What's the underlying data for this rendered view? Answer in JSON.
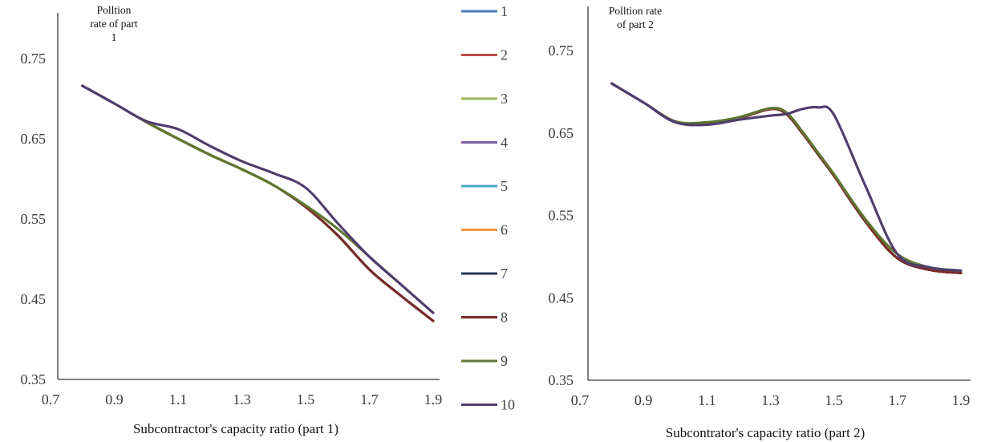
{
  "chart_data": [
    {
      "type": "line",
      "xlabel": "Subcontractor's capacity ratio (part 1)",
      "annotation": [
        "Polltion",
        "rate of part",
        "1"
      ],
      "xlim": [
        0.7,
        1.9
      ],
      "ylim": [
        0.35,
        0.75
      ],
      "xticks": [
        "0.7",
        "0.9",
        "1.1",
        "1.3",
        "1.5",
        "1.7",
        "1.9"
      ],
      "yticks": [
        "0.35",
        "0.45",
        "0.55",
        "0.65",
        "0.75"
      ],
      "x": [
        0.8,
        0.9,
        1.0,
        1.1,
        1.2,
        1.3,
        1.4,
        1.5,
        1.6,
        1.7,
        1.8,
        1.9
      ],
      "series": [
        {
          "name": "1",
          "color": "#4A7EBB",
          "values": [
            0.716,
            0.694,
            0.671,
            0.65,
            0.63,
            0.612,
            0.592,
            0.565,
            0.53,
            0.487,
            0.454,
            0.423
          ]
        },
        {
          "name": "2",
          "color": "#BE4B48",
          "values": [
            0.716,
            0.694,
            0.671,
            0.65,
            0.63,
            0.612,
            0.592,
            0.565,
            0.53,
            0.487,
            0.454,
            0.423
          ]
        },
        {
          "name": "3",
          "color": "#98B954",
          "values": [
            0.716,
            0.694,
            0.671,
            0.65,
            0.63,
            0.612,
            0.592,
            0.567,
            0.538,
            0.503,
            0.468,
            0.433
          ]
        },
        {
          "name": "4",
          "color": "#7D60A0",
          "values": [
            0.716,
            0.694,
            0.672,
            0.662,
            0.641,
            0.622,
            0.607,
            0.589,
            0.545,
            0.503,
            0.468,
            0.433
          ]
        },
        {
          "name": "5",
          "color": "#46AAC5",
          "values": [
            0.716,
            0.694,
            0.671,
            0.65,
            0.63,
            0.612,
            0.592,
            0.565,
            0.53,
            0.487,
            0.454,
            0.423
          ]
        },
        {
          "name": "6",
          "color": "#F69647",
          "values": [
            0.716,
            0.694,
            0.671,
            0.65,
            0.63,
            0.612,
            0.592,
            0.565,
            0.53,
            0.487,
            0.454,
            0.423
          ]
        },
        {
          "name": "7",
          "color": "#23385B",
          "values": [
            0.716,
            0.694,
            0.671,
            0.65,
            0.63,
            0.612,
            0.592,
            0.565,
            0.53,
            0.487,
            0.454,
            0.423
          ]
        },
        {
          "name": "8",
          "color": "#772C2A",
          "values": [
            0.716,
            0.694,
            0.671,
            0.65,
            0.63,
            0.612,
            0.592,
            0.565,
            0.53,
            0.487,
            0.454,
            0.423
          ]
        },
        {
          "name": "9",
          "color": "#5F7530",
          "values": [
            0.716,
            0.694,
            0.671,
            0.65,
            0.63,
            0.612,
            0.592,
            0.567,
            0.538,
            0.503,
            0.468,
            0.433
          ]
        },
        {
          "name": "10",
          "color": "#4F3D6D",
          "values": [
            0.716,
            0.694,
            0.672,
            0.662,
            0.641,
            0.622,
            0.607,
            0.589,
            0.545,
            0.503,
            0.468,
            0.433
          ]
        }
      ]
    },
    {
      "type": "line",
      "xlabel": "Subcontrator's capacity ratio (part 2)",
      "annotation": [
        "Polltion rate",
        "of part 2"
      ],
      "xlim": [
        0.7,
        1.9
      ],
      "ylim": [
        0.35,
        0.75
      ],
      "xticks": [
        "0.7",
        "0.9",
        "1.1",
        "1.3",
        "1.5",
        "1.7",
        "1.9"
      ],
      "yticks": [
        "0.35",
        "0.45",
        "0.55",
        "0.65",
        "0.75"
      ],
      "x": [
        0.8,
        0.9,
        1.0,
        1.1,
        1.2,
        1.3,
        1.35,
        1.4,
        1.45,
        1.5,
        1.6,
        1.7,
        1.8,
        1.9
      ],
      "series": [
        {
          "name": "1",
          "color": "#4A7EBB",
          "values": [
            0.71,
            0.687,
            0.664,
            0.662,
            0.668,
            0.679,
            0.673,
            0.65,
            0.624,
            0.598,
            0.542,
            0.498,
            0.484,
            0.48
          ]
        },
        {
          "name": "2",
          "color": "#BE4B48",
          "values": [
            0.71,
            0.687,
            0.664,
            0.662,
            0.668,
            0.679,
            0.673,
            0.65,
            0.624,
            0.598,
            0.542,
            0.498,
            0.484,
            0.48
          ]
        },
        {
          "name": "3",
          "color": "#98B954",
          "values": [
            0.71,
            0.687,
            0.664,
            0.663,
            0.669,
            0.68,
            0.675,
            0.652,
            0.626,
            0.6,
            0.545,
            0.503,
            0.487,
            0.483
          ]
        },
        {
          "name": "4",
          "color": "#7D60A0",
          "values": [
            0.71,
            0.687,
            0.663,
            0.66,
            0.666,
            0.671,
            0.673,
            0.679,
            0.681,
            0.672,
            0.585,
            0.503,
            0.487,
            0.483
          ]
        },
        {
          "name": "5",
          "color": "#46AAC5",
          "values": [
            0.71,
            0.687,
            0.664,
            0.662,
            0.668,
            0.679,
            0.673,
            0.65,
            0.624,
            0.598,
            0.542,
            0.498,
            0.484,
            0.48
          ]
        },
        {
          "name": "6",
          "color": "#F69647",
          "values": [
            0.71,
            0.687,
            0.664,
            0.662,
            0.668,
            0.679,
            0.673,
            0.65,
            0.624,
            0.598,
            0.542,
            0.498,
            0.484,
            0.48
          ]
        },
        {
          "name": "7",
          "color": "#23385B",
          "values": [
            0.71,
            0.687,
            0.664,
            0.662,
            0.668,
            0.679,
            0.673,
            0.65,
            0.624,
            0.598,
            0.542,
            0.498,
            0.484,
            0.48
          ]
        },
        {
          "name": "8",
          "color": "#772C2A",
          "values": [
            0.71,
            0.687,
            0.664,
            0.662,
            0.668,
            0.679,
            0.673,
            0.65,
            0.624,
            0.598,
            0.542,
            0.498,
            0.484,
            0.48
          ]
        },
        {
          "name": "9",
          "color": "#5F7530",
          "values": [
            0.71,
            0.687,
            0.664,
            0.663,
            0.669,
            0.68,
            0.675,
            0.652,
            0.626,
            0.6,
            0.545,
            0.503,
            0.487,
            0.483
          ]
        },
        {
          "name": "10",
          "color": "#4F3D6D",
          "values": [
            0.71,
            0.687,
            0.663,
            0.66,
            0.666,
            0.671,
            0.673,
            0.679,
            0.681,
            0.672,
            0.585,
            0.503,
            0.487,
            0.483
          ]
        }
      ]
    }
  ],
  "legend": {
    "placement": "between charts",
    "items": [
      {
        "label": "1",
        "color": "#4A7EBB"
      },
      {
        "label": "2",
        "color": "#BE4B48"
      },
      {
        "label": "3",
        "color": "#98B954"
      },
      {
        "label": "4",
        "color": "#7D60A0"
      },
      {
        "label": "5",
        "color": "#46AAC5"
      },
      {
        "label": "6",
        "color": "#F69647"
      },
      {
        "label": "7",
        "color": "#23385B"
      },
      {
        "label": "8",
        "color": "#772C2A"
      },
      {
        "label": "9",
        "color": "#5F7530"
      },
      {
        "label": "10",
        "color": "#4F3D6D"
      }
    ]
  }
}
